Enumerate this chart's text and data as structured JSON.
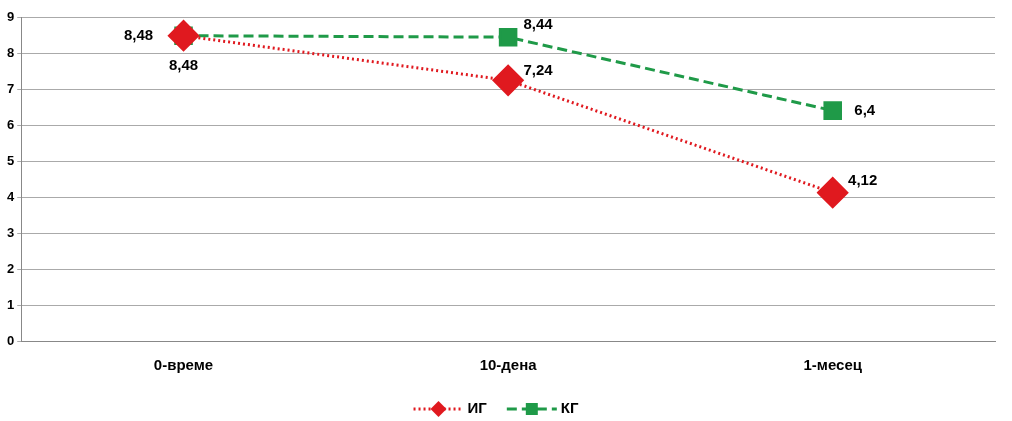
{
  "chart_data": {
    "type": "line",
    "categories": [
      "0-време",
      "10-дена",
      "1-месец"
    ],
    "series": [
      {
        "name": "ИГ",
        "color": "#e0191f",
        "values": [
          8.48,
          7.24,
          4.12
        ],
        "value_labels": [
          "8,48",
          "7,24",
          "4,12"
        ],
        "marker": "diamond",
        "line_style": "dotted"
      },
      {
        "name": "КГ",
        "color": "#1f9a48",
        "values": [
          8.48,
          8.44,
          6.4
        ],
        "value_labels": [
          "8,48",
          "8,44",
          "6,4"
        ],
        "marker": "square",
        "line_style": "dashed"
      }
    ],
    "ylim": [
      0,
      9
    ],
    "yticks": [
      0,
      1,
      2,
      3,
      4,
      5,
      6,
      7,
      8,
      9
    ],
    "grid": "y",
    "legend": "bottom"
  }
}
